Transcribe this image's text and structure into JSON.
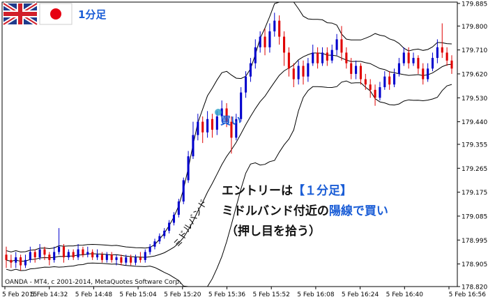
{
  "header": {
    "timeframe_label": "1分足"
  },
  "copyright": "OANDA - MT4, c 2001-2014, MetaQuotes Software Corp.",
  "annotations": {
    "buy_marker": "買い",
    "midband_label": "ミドルバンド",
    "note_line1_prefix": "エントリーは",
    "note_line1_highlight": "【１分足】",
    "note_line2_prefix": "ミドルバンド付近の",
    "note_line2_highlight": "陽線で買い",
    "note_line3": "（押し目を拾う）"
  },
  "colors": {
    "bull": "#0000cd",
    "bear": "#e00000",
    "band": "#000000",
    "highlight": "#1a5dd6",
    "text": "#111111"
  },
  "chart_data": {
    "type": "candlestick",
    "instrument_timeframe": "1分足",
    "y_ticks": [
      "179.885",
      "179.800",
      "179.710",
      "179.620",
      "179.530",
      "179.440",
      "179.355",
      "179.265",
      "179.175",
      "179.085",
      "178.995",
      "178.905",
      "178.820"
    ],
    "x_ticks": [
      "5 Feb 2015",
      "5 Feb 14:32",
      "5 Feb 14:48",
      "5 Feb 15:04",
      "5 Feb 15:20",
      "5 Feb 15:36",
      "5 Feb 15:52",
      "5 Feb 16:08",
      "5 Feb 16:24",
      "5 Feb 16:40",
      "5 Feb 16:56"
    ],
    "ylim": [
      178.82,
      179.89
    ],
    "indicators": [
      "Bollinger Bands (upper, middle, lower)"
    ],
    "grid": false,
    "candles": [
      [
        178.94,
        178.92,
        178.97,
        178.89
      ],
      [
        178.92,
        178.91,
        178.94,
        178.89
      ],
      [
        178.91,
        178.93,
        178.95,
        178.89
      ],
      [
        178.93,
        178.9,
        178.94,
        178.88
      ],
      [
        178.9,
        178.92,
        178.94,
        178.89
      ],
      [
        178.92,
        178.95,
        178.97,
        178.91
      ],
      [
        178.95,
        178.93,
        178.96,
        178.91
      ],
      [
        178.93,
        178.96,
        178.98,
        178.92
      ],
      [
        178.96,
        178.94,
        178.97,
        178.92
      ],
      [
        178.94,
        178.92,
        178.95,
        178.9
      ],
      [
        178.92,
        178.95,
        178.97,
        178.91
      ],
      [
        178.95,
        178.97,
        179.04,
        178.94
      ],
      [
        178.97,
        178.93,
        178.98,
        178.91
      ],
      [
        178.93,
        178.95,
        178.96,
        178.92
      ],
      [
        178.95,
        178.93,
        178.96,
        178.92
      ],
      [
        178.93,
        178.96,
        178.98,
        178.92
      ],
      [
        178.96,
        178.94,
        178.97,
        178.93
      ],
      [
        178.94,
        178.95,
        178.97,
        178.93
      ],
      [
        178.95,
        178.93,
        178.96,
        178.92
      ],
      [
        178.93,
        178.94,
        178.96,
        178.92
      ],
      [
        178.94,
        178.92,
        178.95,
        178.91
      ],
      [
        178.92,
        178.94,
        178.95,
        178.91
      ],
      [
        178.94,
        178.92,
        178.95,
        178.91
      ],
      [
        178.92,
        178.93,
        178.94,
        178.9
      ],
      [
        178.93,
        178.91,
        178.94,
        178.9
      ],
      [
        178.91,
        178.93,
        178.94,
        178.9
      ],
      [
        178.93,
        178.91,
        178.94,
        178.9
      ],
      [
        178.91,
        178.93,
        178.94,
        178.9
      ],
      [
        178.93,
        178.92,
        178.95,
        178.91
      ],
      [
        178.92,
        178.95,
        178.96,
        178.91
      ],
      [
        178.95,
        178.97,
        178.98,
        178.94
      ],
      [
        178.97,
        178.99,
        179.0,
        178.96
      ],
      [
        178.99,
        179.01,
        179.02,
        178.98
      ],
      [
        179.01,
        179.03,
        179.04,
        179.0
      ],
      [
        179.03,
        179.06,
        179.07,
        179.02
      ],
      [
        179.06,
        179.09,
        179.1,
        179.05
      ],
      [
        179.09,
        179.14,
        179.15,
        179.08
      ],
      [
        179.14,
        179.22,
        179.23,
        179.13
      ],
      [
        179.22,
        179.31,
        179.33,
        179.21
      ],
      [
        179.31,
        179.39,
        179.44,
        179.3
      ],
      [
        179.39,
        179.44,
        179.47,
        179.37
      ],
      [
        179.44,
        179.4,
        179.46,
        179.36
      ],
      [
        179.4,
        179.45,
        179.48,
        179.38
      ],
      [
        179.45,
        179.41,
        179.47,
        179.38
      ],
      [
        179.41,
        179.46,
        179.48,
        179.39
      ],
      [
        179.46,
        179.49,
        179.52,
        179.44
      ],
      [
        179.49,
        179.44,
        179.51,
        179.42
      ],
      [
        179.44,
        179.38,
        179.46,
        179.32
      ],
      [
        179.38,
        179.45,
        179.47,
        179.37
      ],
      [
        179.45,
        179.55,
        179.57,
        179.44
      ],
      [
        179.55,
        179.61,
        179.63,
        179.53
      ],
      [
        179.61,
        179.66,
        179.68,
        179.59
      ],
      [
        179.66,
        179.72,
        179.75,
        179.64
      ],
      [
        179.72,
        179.76,
        179.78,
        179.7
      ],
      [
        179.76,
        179.72,
        179.79,
        179.69
      ],
      [
        179.72,
        179.78,
        179.81,
        179.7
      ],
      [
        179.78,
        179.82,
        179.85,
        179.76
      ],
      [
        179.82,
        179.76,
        179.84,
        179.73
      ],
      [
        179.76,
        179.7,
        179.78,
        179.65
      ],
      [
        179.7,
        179.64,
        179.72,
        179.61
      ],
      [
        179.64,
        179.6,
        179.66,
        179.57
      ],
      [
        179.6,
        179.65,
        179.67,
        179.58
      ],
      [
        179.65,
        179.61,
        179.67,
        179.58
      ],
      [
        179.61,
        179.66,
        179.68,
        179.59
      ],
      [
        179.66,
        179.7,
        179.73,
        179.65
      ],
      [
        179.7,
        179.66,
        179.72,
        179.64
      ],
      [
        179.66,
        179.7,
        179.72,
        179.65
      ],
      [
        179.7,
        179.67,
        179.72,
        179.65
      ],
      [
        179.67,
        179.71,
        179.73,
        179.66
      ],
      [
        179.71,
        179.75,
        179.77,
        179.69
      ],
      [
        179.75,
        179.7,
        179.8,
        179.67
      ],
      [
        179.7,
        179.66,
        179.72,
        179.64
      ],
      [
        179.66,
        179.62,
        179.68,
        179.6
      ],
      [
        179.62,
        179.65,
        179.67,
        179.6
      ],
      [
        179.65,
        179.6,
        179.66,
        179.58
      ],
      [
        179.6,
        179.58,
        179.62,
        179.56
      ],
      [
        179.58,
        179.56,
        179.6,
        179.53
      ],
      [
        179.56,
        179.53,
        179.58,
        179.5
      ],
      [
        179.53,
        179.57,
        179.59,
        179.52
      ],
      [
        179.57,
        179.61,
        179.63,
        179.56
      ],
      [
        179.61,
        179.58,
        179.63,
        179.56
      ],
      [
        179.58,
        179.62,
        179.64,
        179.57
      ],
      [
        179.62,
        179.66,
        179.68,
        179.61
      ],
      [
        179.66,
        179.7,
        179.72,
        179.65
      ],
      [
        179.7,
        179.66,
        179.72,
        179.64
      ],
      [
        179.66,
        179.68,
        179.7,
        179.65
      ],
      [
        179.68,
        179.64,
        179.69,
        179.62
      ],
      [
        179.64,
        179.6,
        179.66,
        179.58
      ],
      [
        179.6,
        179.64,
        179.66,
        179.59
      ],
      [
        179.64,
        179.68,
        179.7,
        179.63
      ],
      [
        179.68,
        179.72,
        179.75,
        179.66
      ],
      [
        179.72,
        179.7,
        179.81,
        179.68
      ],
      [
        179.7,
        179.67,
        179.72,
        179.65
      ],
      [
        179.67,
        179.64,
        179.69,
        179.62
      ]
    ]
  }
}
